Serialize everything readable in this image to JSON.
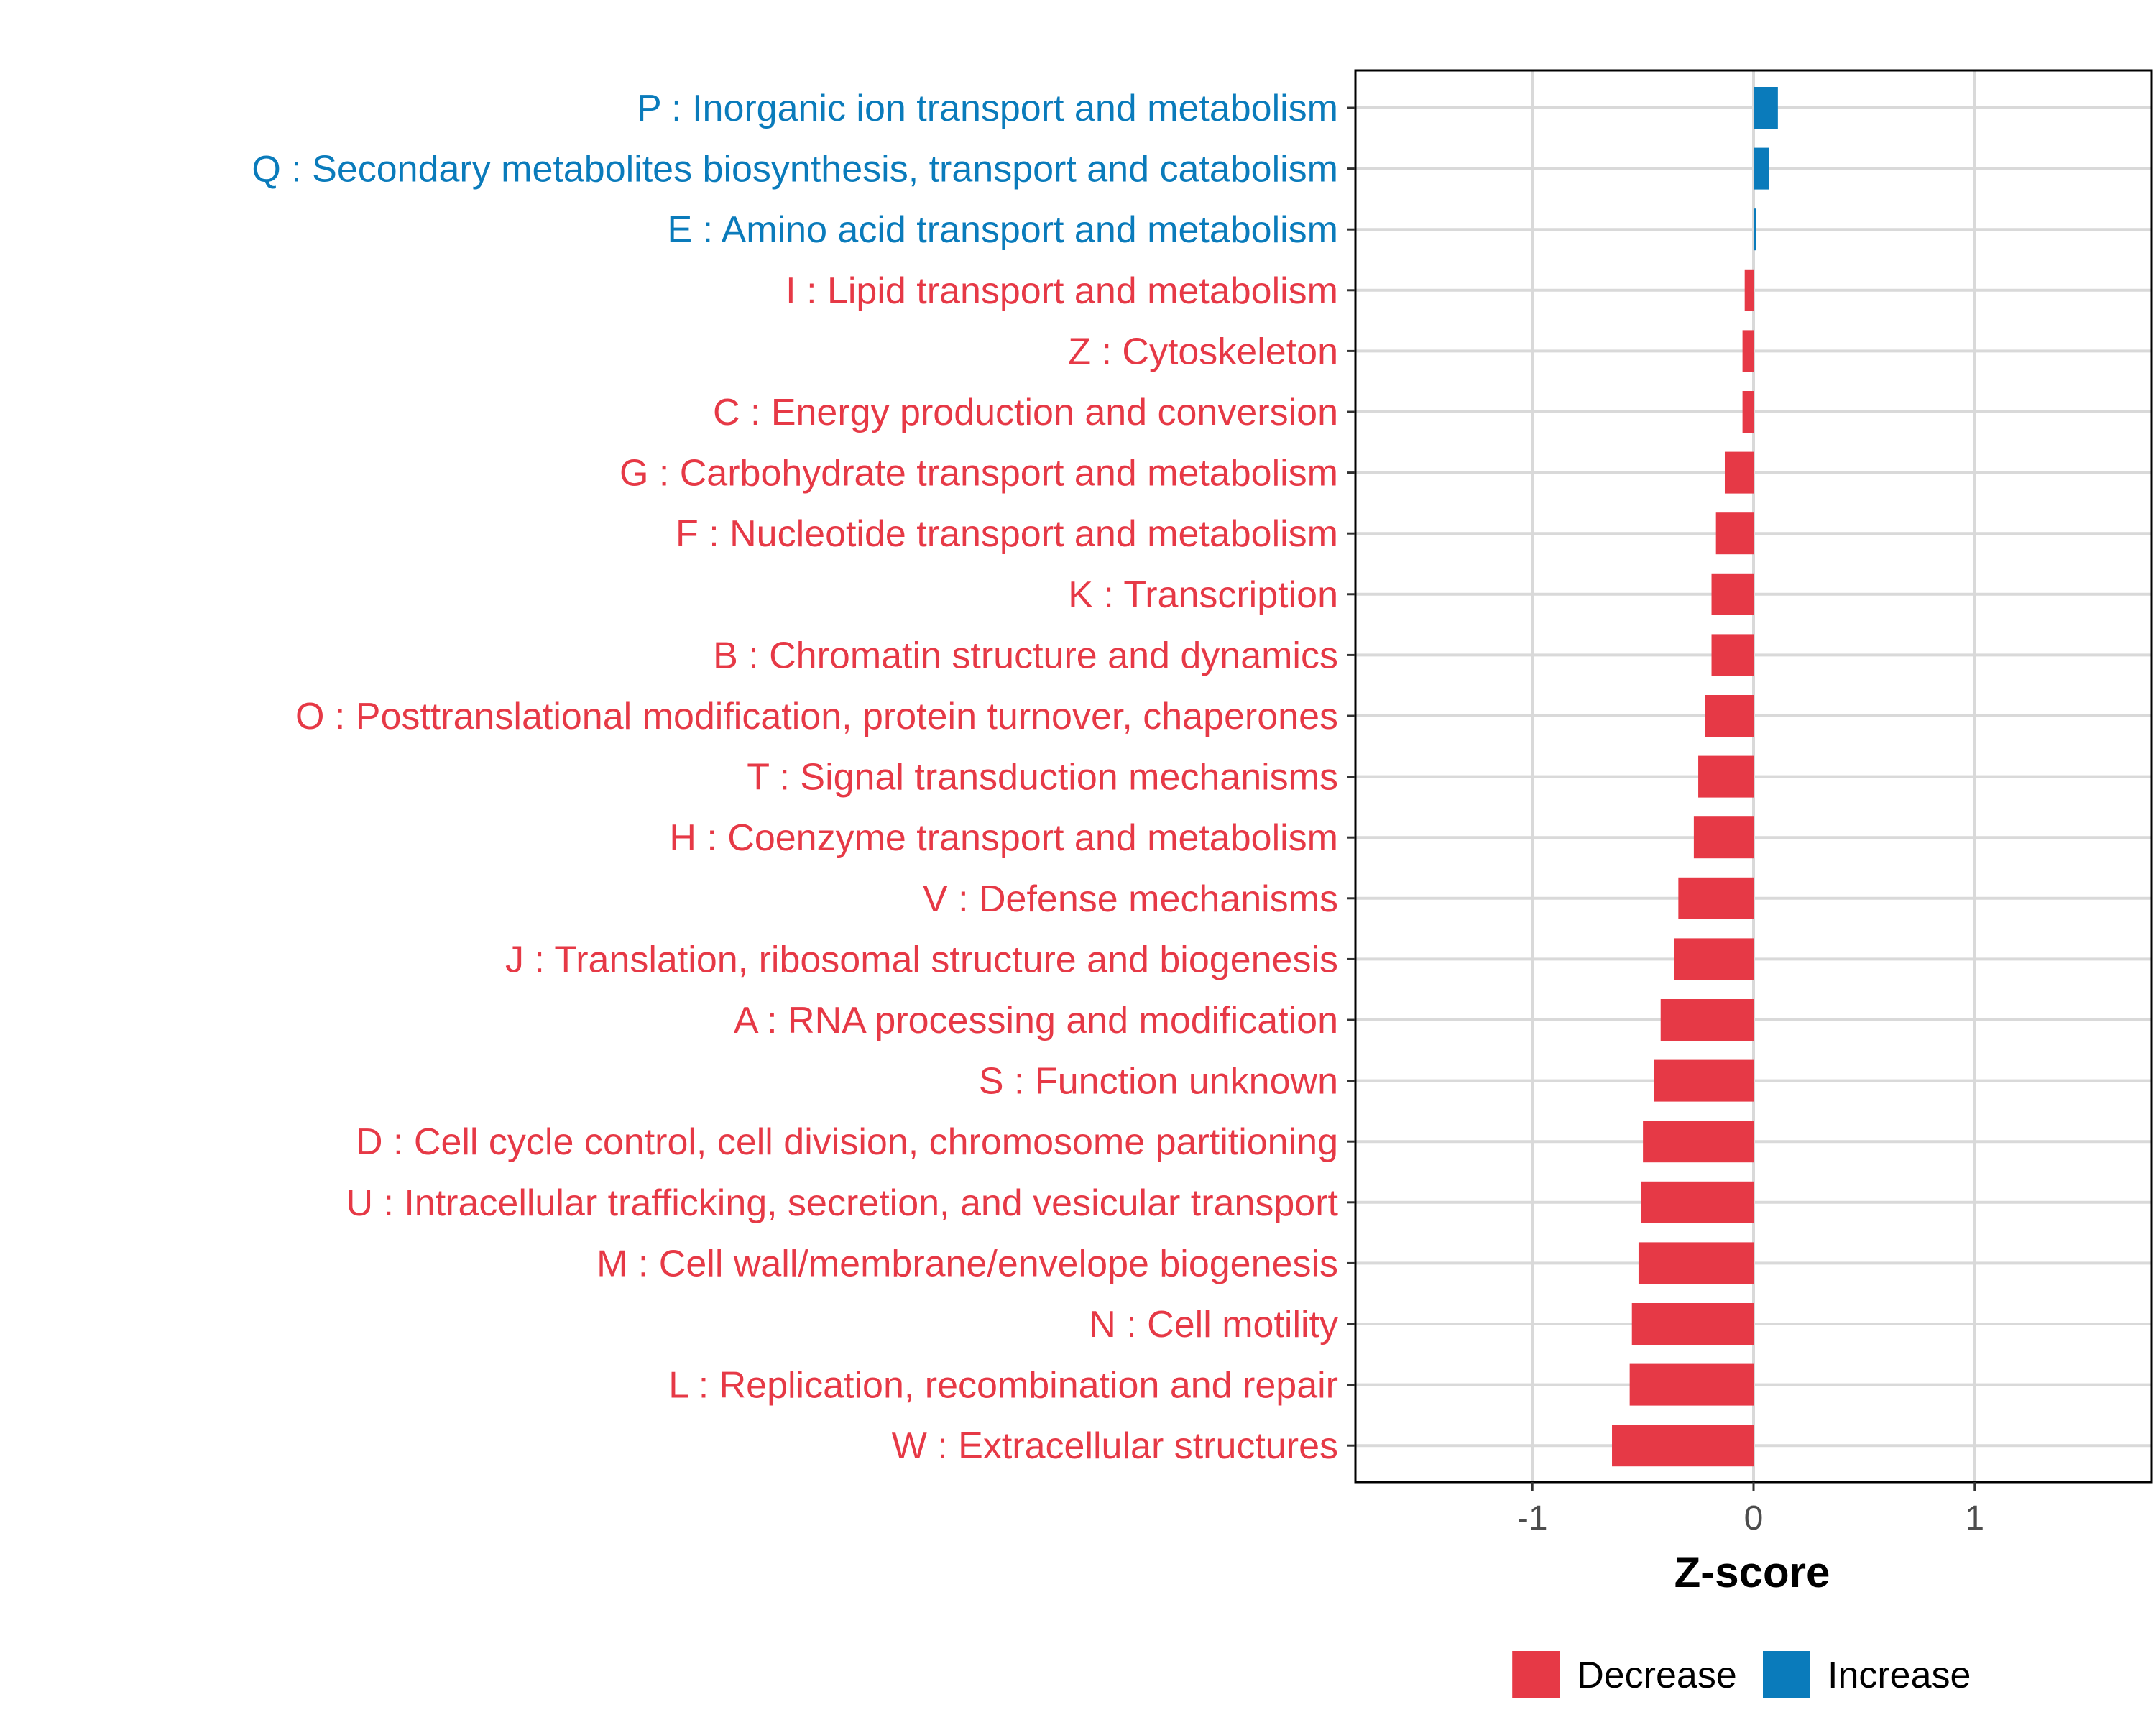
{
  "chart_data": {
    "type": "bar",
    "orientation": "horizontal",
    "title": "",
    "xlabel": "Z-score",
    "ylabel": "",
    "xlim": [
      -1.8,
      1.8
    ],
    "xticks": [
      -1,
      0,
      1
    ],
    "xtick_labels": [
      "-1",
      "0",
      "1"
    ],
    "grid": true,
    "legend_position": "bottom",
    "colors": {
      "Decrease": "#E63946",
      "Increase": "#0A7BBB"
    },
    "legend": [
      {
        "label": "Decrease",
        "color": "#E63946"
      },
      {
        "label": "Increase",
        "color": "#0A7BBB"
      }
    ],
    "categories": [
      "P : Inorganic ion transport and metabolism",
      "Q : Secondary metabolites biosynthesis, transport and catabolism",
      "E : Amino acid transport and metabolism",
      "I : Lipid transport and metabolism",
      "Z : Cytoskeleton",
      "C : Energy production and conversion",
      "G : Carbohydrate transport and metabolism",
      "F : Nucleotide transport and metabolism",
      "K : Transcription",
      "B : Chromatin structure and dynamics",
      "O : Posttranslational modification, protein turnover, chaperones",
      "T : Signal transduction mechanisms",
      "H : Coenzyme transport and metabolism",
      "V : Defense mechanisms",
      "J : Translation, ribosomal structure and biogenesis",
      "A : RNA processing and modification",
      "S : Function unknown",
      "D : Cell cycle control, cell division, chromosome partitioning",
      "U : Intracellular trafficking, secretion, and vesicular transport",
      "M : Cell wall/membrane/envelope biogenesis",
      "N : Cell motility",
      "L : Replication, recombination and repair",
      "W : Extracellular structures"
    ],
    "values": [
      0.11,
      0.07,
      0.01,
      -0.04,
      -0.05,
      -0.05,
      -0.13,
      -0.17,
      -0.19,
      -0.19,
      -0.22,
      -0.25,
      -0.27,
      -0.34,
      -0.36,
      -0.42,
      -0.45,
      -0.5,
      -0.51,
      -0.52,
      -0.55,
      -0.56,
      -0.64
    ],
    "direction": [
      "Increase",
      "Increase",
      "Increase",
      "Decrease",
      "Decrease",
      "Decrease",
      "Decrease",
      "Decrease",
      "Decrease",
      "Decrease",
      "Decrease",
      "Decrease",
      "Decrease",
      "Decrease",
      "Decrease",
      "Decrease",
      "Decrease",
      "Decrease",
      "Decrease",
      "Decrease",
      "Decrease",
      "Decrease",
      "Decrease"
    ]
  }
}
